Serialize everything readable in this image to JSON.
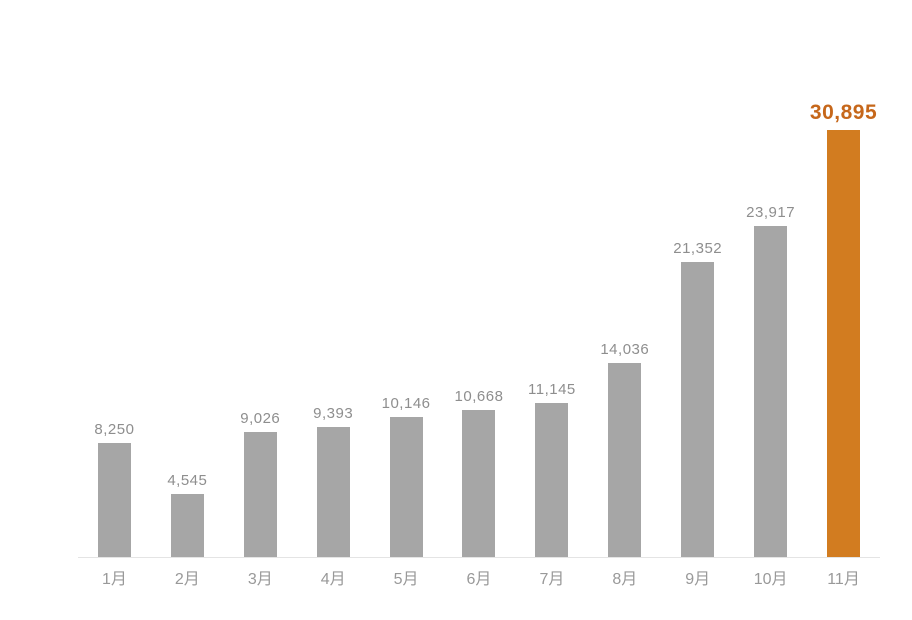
{
  "chart_data": {
    "type": "bar",
    "title": "",
    "xlabel": "",
    "ylabel": "",
    "categories": [
      "1月",
      "2月",
      "3月",
      "4月",
      "5月",
      "6月",
      "7月",
      "8月",
      "9月",
      "10月",
      "11月"
    ],
    "values": [
      8250,
      4545,
      9026,
      9393,
      10146,
      10668,
      11145,
      14036,
      21352,
      23917,
      30895
    ],
    "value_labels": [
      "8,250",
      "4,545",
      "9,026",
      "9,393",
      "10,146",
      "10,668",
      "11,145",
      "14,036",
      "21,352",
      "23,917",
      "30,895"
    ],
    "ylim": [
      0,
      30895
    ],
    "grid": false,
    "legend_position": "none",
    "highlight_index": 10,
    "colors": {
      "bar": "#a6a6a6",
      "highlight_bar": "#d27c20",
      "highlight_label": "#c6671a",
      "value_label": "#8e8e8e",
      "month_label": "#999999",
      "axis_line": "#e4e4e4",
      "background": "#ffffff"
    }
  }
}
